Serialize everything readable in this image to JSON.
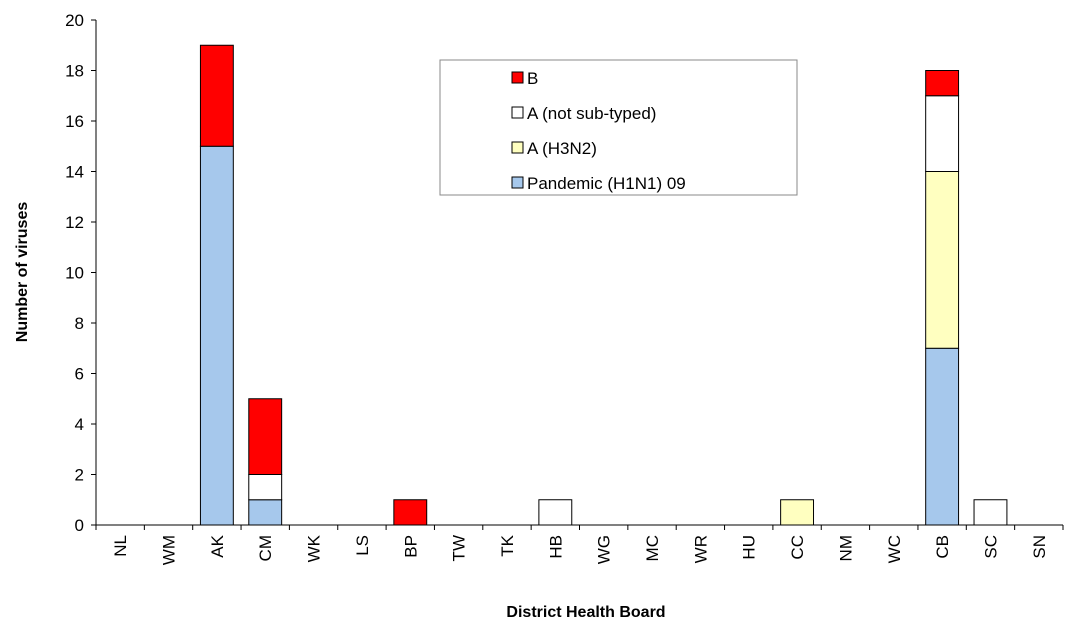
{
  "chart_data": {
    "type": "bar",
    "stacked": true,
    "xlabel": "District Health Board",
    "ylabel": "Number of viruses",
    "ylim": [
      0,
      20
    ],
    "yticks": [
      0,
      2,
      4,
      6,
      8,
      10,
      12,
      14,
      16,
      18,
      20
    ],
    "grid": false,
    "legend_position": "top-center",
    "categories": [
      "NL",
      "WM",
      "AK",
      "CM",
      "WK",
      "LS",
      "BP",
      "TW",
      "TK",
      "HB",
      "WG",
      "MC",
      "WR",
      "HU",
      "CC",
      "NM",
      "WC",
      "CB",
      "SC",
      "SN"
    ],
    "series": [
      {
        "name": "Pandemic (H1N1) 09",
        "color": "#a6c8ec",
        "values": [
          0,
          0,
          15,
          1,
          0,
          0,
          0,
          0,
          0,
          0,
          0,
          0,
          0,
          0,
          0,
          0,
          0,
          7,
          0,
          0
        ]
      },
      {
        "name": "A (H3N2)",
        "color": "#ffffc0",
        "values": [
          0,
          0,
          0,
          0,
          0,
          0,
          0,
          0,
          0,
          0,
          0,
          0,
          0,
          0,
          1,
          0,
          0,
          7,
          0,
          0
        ]
      },
      {
        "name": "A (not sub-typed)",
        "color": "#ffffff",
        "values": [
          0,
          0,
          0,
          1,
          0,
          0,
          0,
          0,
          0,
          1,
          0,
          0,
          0,
          0,
          0,
          0,
          0,
          3,
          1,
          0
        ]
      },
      {
        "name": "B",
        "color": "#ff0000",
        "values": [
          0,
          0,
          4,
          3,
          0,
          0,
          1,
          0,
          0,
          0,
          0,
          0,
          0,
          0,
          0,
          0,
          0,
          1,
          0,
          0
        ]
      }
    ]
  }
}
